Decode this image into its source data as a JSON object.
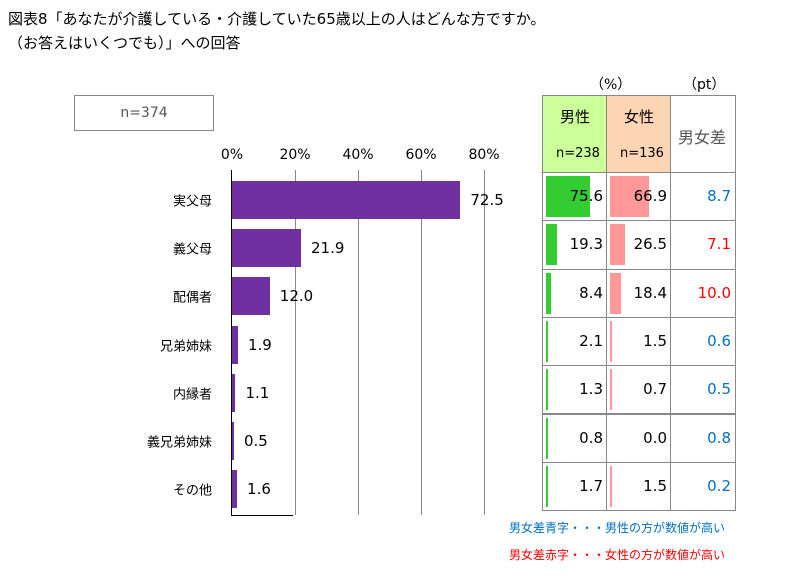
{
  "title_line1": "図表8「あなたが介護している・介護していた65歳以上の人はどんな方ですか。",
  "title_line2": "（お答えはいくつでも）」への回答",
  "sample_label": "n=374",
  "chart_data": {
    "type": "bar",
    "orientation": "horizontal",
    "categories": [
      "実父母",
      "義父母",
      "配偶者",
      "兄弟姉妹",
      "内縁者",
      "義兄弟姉妹",
      "その他"
    ],
    "values": [
      72.5,
      21.9,
      12.0,
      1.9,
      1.1,
      0.5,
      1.6
    ],
    "value_labels": [
      "72.5",
      "21.9",
      "12.0",
      "1.9",
      "1.1",
      "0.5",
      "1.6"
    ],
    "xlim": [
      0,
      80
    ],
    "ticks": [
      "0%",
      "20%",
      "40%",
      "60%",
      "80%"
    ],
    "grid": true,
    "bar_color": "#7030a0"
  },
  "table": {
    "unit_pct": "（%）",
    "unit_pt": "（pt）",
    "male_header": "男性",
    "male_n": "n=238",
    "female_header": "女性",
    "female_n": "n=136",
    "diff_header": "男女差",
    "male_color": "#33cc33",
    "female_color": "#ff9999",
    "male_header_bg": "#ccff99",
    "female_header_bg": "#fcd5b4",
    "blue": "#0070c0",
    "red": "#ff0000",
    "rows": [
      {
        "male": "75.6",
        "female": "66.9",
        "diff": "8.7",
        "diff_color": "blue"
      },
      {
        "male": "19.3",
        "female": "26.5",
        "diff": "7.1",
        "diff_color": "red"
      },
      {
        "male": "8.4",
        "female": "18.4",
        "diff": "10.0",
        "diff_color": "red"
      },
      {
        "male": "2.1",
        "female": "1.5",
        "diff": "0.6",
        "diff_color": "blue"
      },
      {
        "male": "1.3",
        "female": "0.7",
        "diff": "0.5",
        "diff_color": "blue"
      },
      {
        "male": "0.8",
        "female": "0.0",
        "diff": "0.8",
        "diff_color": "blue"
      },
      {
        "male": "1.7",
        "female": "1.5",
        "diff": "0.2",
        "diff_color": "blue"
      }
    ]
  },
  "notes": {
    "blue_note": "男女差青字・・・男性の方が数値が高い",
    "red_note": "男女差赤字・・・女性の方が数値が高い"
  }
}
